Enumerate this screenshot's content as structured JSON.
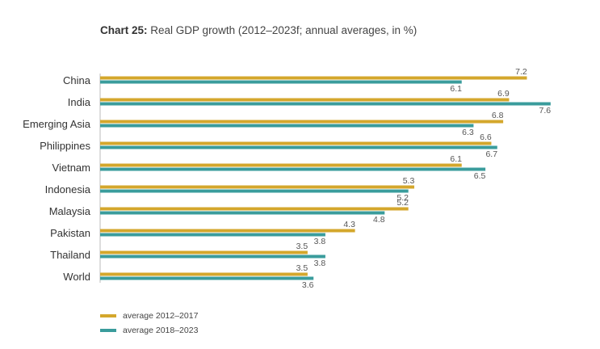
{
  "title": {
    "prefix": "Chart 25:",
    "text": "Real GDP growth (2012–2023f; annual averages, in %)"
  },
  "colors": {
    "series_a": "#D4A72C",
    "series_b": "#3A9C9C"
  },
  "chart_data": {
    "type": "bar",
    "orientation": "horizontal",
    "categories": [
      "China",
      "India",
      "Emerging Asia",
      "Philippines",
      "Vietnam",
      "Indonesia",
      "Malaysia",
      "Pakistan",
      "Thailand",
      "World"
    ],
    "series": [
      {
        "name": "average 2012–2017",
        "values": [
          7.2,
          6.9,
          6.8,
          6.6,
          6.1,
          5.3,
          5.2,
          4.3,
          3.5,
          3.5
        ]
      },
      {
        "name": "average 2018–2023",
        "values": [
          6.1,
          7.6,
          6.3,
          6.7,
          6.5,
          5.2,
          4.8,
          3.8,
          3.8,
          3.6
        ]
      }
    ],
    "xlim": [
      0,
      7.6
    ],
    "grid": false,
    "legend": "bottom-left"
  }
}
